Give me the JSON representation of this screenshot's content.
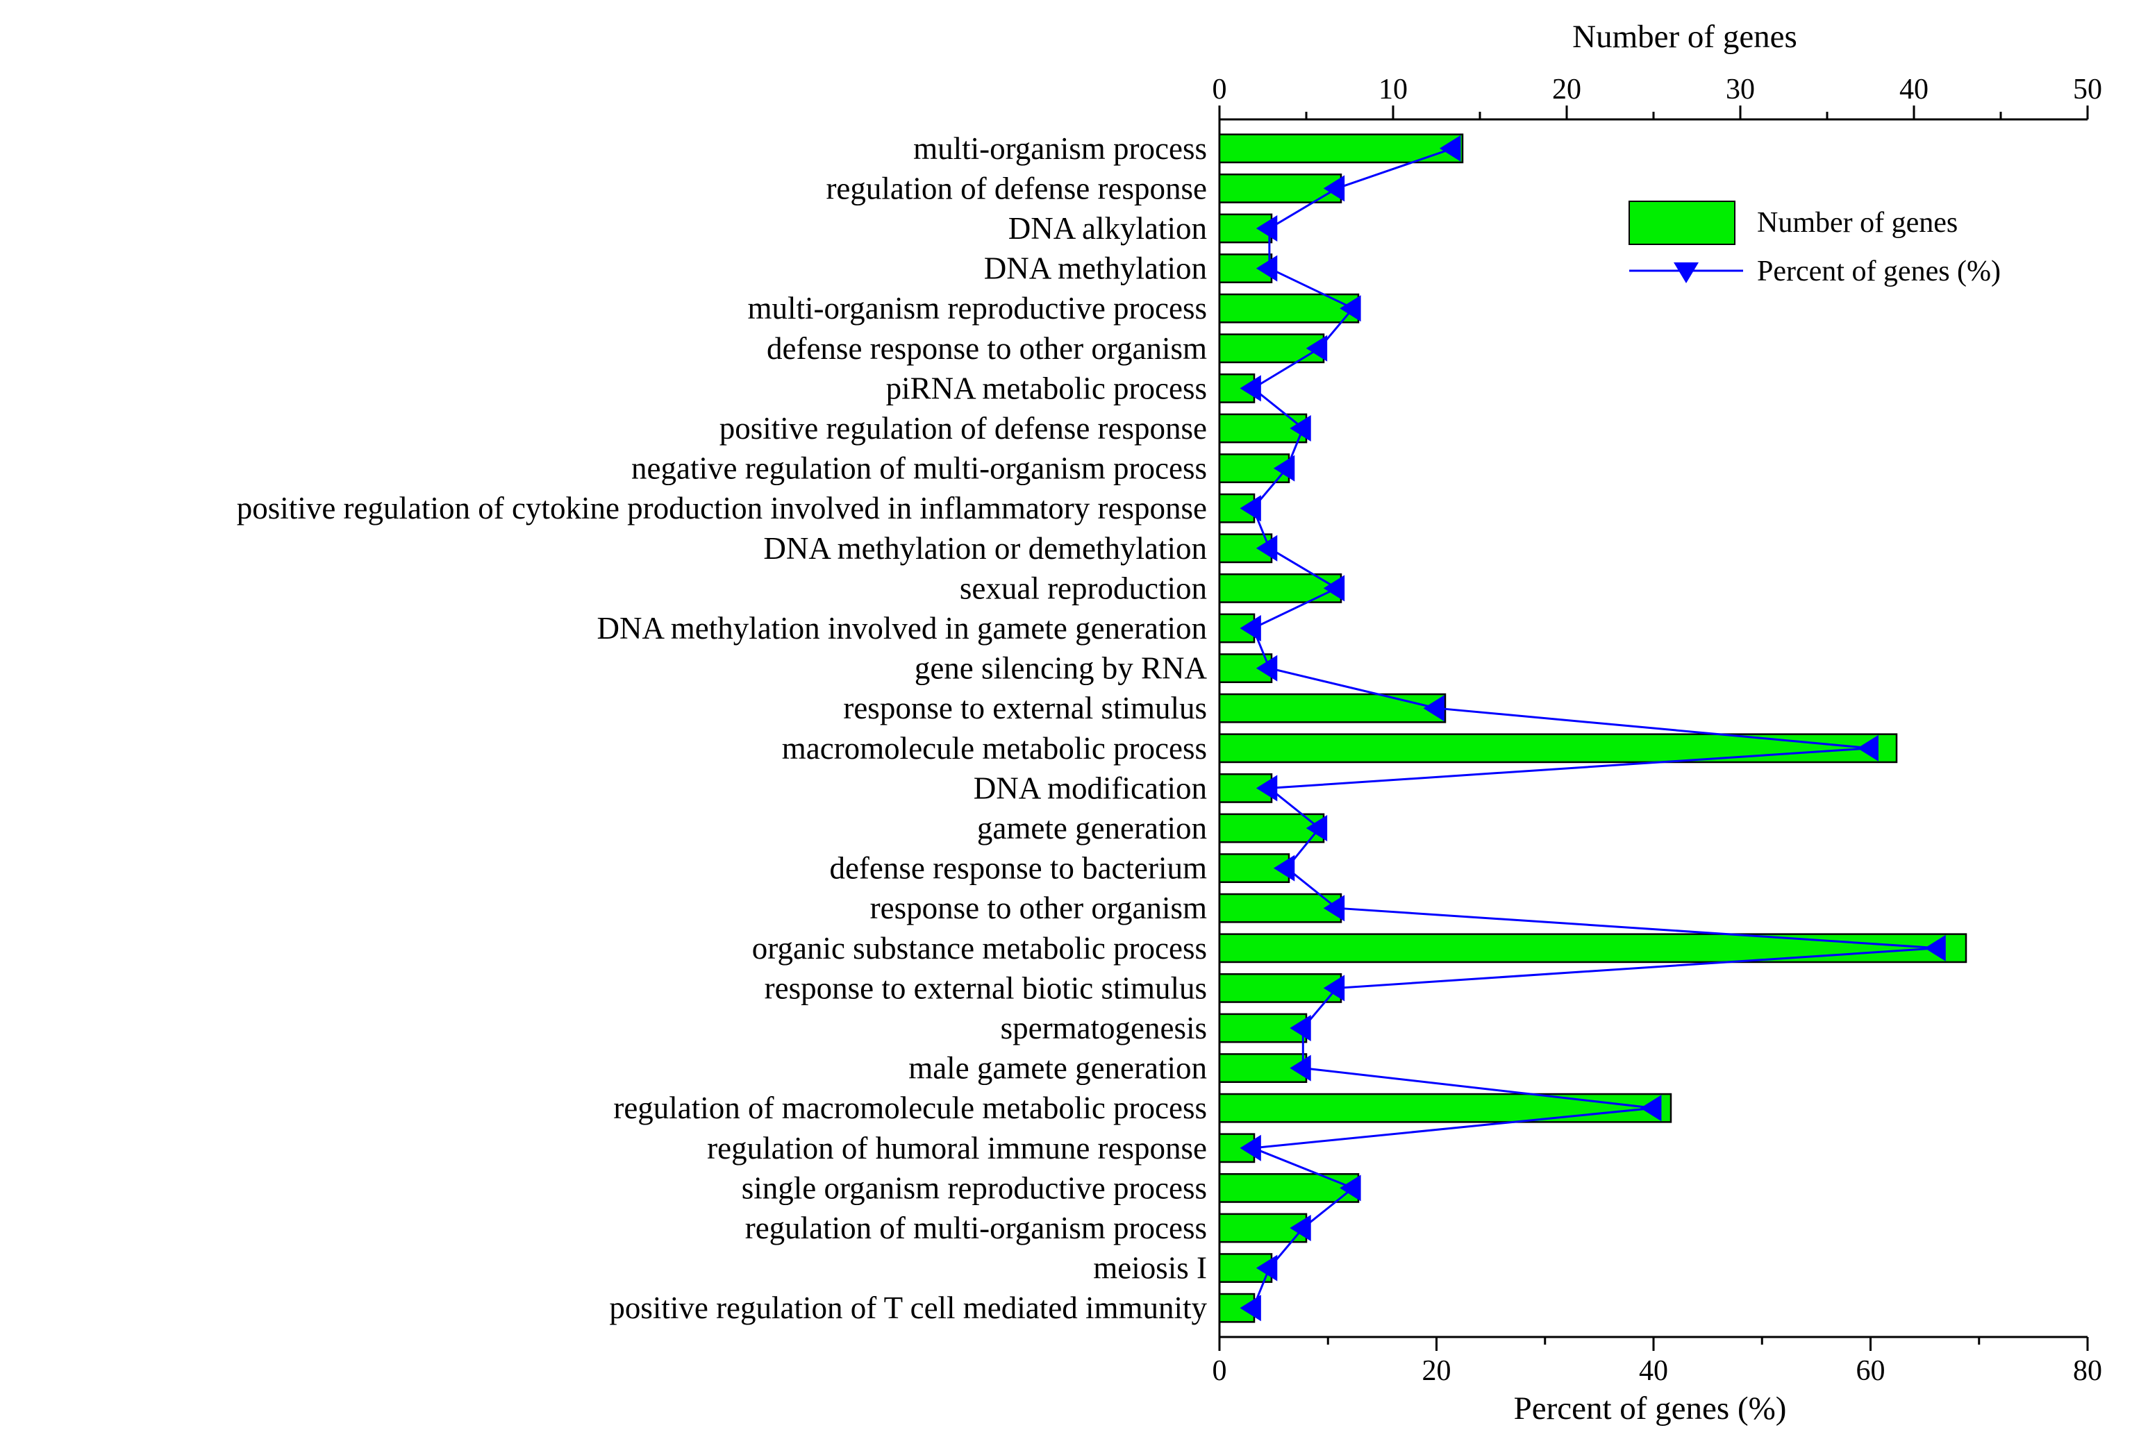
{
  "chart_data": {
    "type": "bar",
    "orientation": "horizontal",
    "categories": [
      "multi-organism process",
      "regulation of defense response",
      "DNA alkylation",
      "DNA methylation",
      "multi-organism reproductive process",
      "defense response to other organism",
      "piRNA metabolic process",
      "positive regulation of defense response",
      "negative regulation of multi-organism process",
      "positive regulation of cytokine production involved in inflammatory response",
      "DNA methylation or demethylation",
      "sexual reproduction",
      "DNA methylation involved in gamete generation",
      "gene silencing by RNA",
      "response to external stimulus",
      "macromolecule metabolic process",
      "DNA modification",
      "gamete generation",
      "defense response to bacterium",
      "response to other organism",
      "organic substance metabolic process",
      "response to external biotic stimulus",
      "spermatogenesis",
      "male gamete generation",
      "regulation of macromolecule metabolic process",
      "regulation of humoral immune response",
      "single organism reproductive process",
      "regulation of multi-organism process",
      "meiosis I",
      "positive regulation of T cell mediated immunity"
    ],
    "series": [
      {
        "name": "Number of genes",
        "type": "bar",
        "axis": "top",
        "color": "#00ee00",
        "values": [
          14,
          7,
          3,
          3,
          8,
          6,
          2,
          5,
          4,
          2,
          3,
          7,
          2,
          3,
          13,
          39,
          3,
          6,
          4,
          7,
          43,
          7,
          5,
          5,
          26,
          2,
          8,
          5,
          3,
          2
        ]
      },
      {
        "name": "Percent of  genes (%)",
        "type": "line",
        "axis": "bottom",
        "color": "#0000ff",
        "marker": "triangle",
        "values": [
          21.5,
          10.8,
          4.6,
          4.6,
          12.3,
          9.2,
          3.1,
          7.7,
          6.2,
          3.1,
          4.6,
          10.8,
          3.1,
          4.6,
          20.0,
          60.0,
          4.6,
          9.2,
          6.2,
          10.8,
          66.2,
          10.8,
          7.7,
          7.7,
          40.0,
          3.1,
          12.3,
          7.7,
          4.6,
          3.1
        ]
      }
    ],
    "top_axis": {
      "title": "Number of genes",
      "range": [
        0,
        50
      ],
      "ticks": [
        "0",
        "10",
        "20",
        "30",
        "40",
        "50"
      ]
    },
    "bottom_axis": {
      "title": "Percent of  genes (%)",
      "range": [
        0,
        80
      ],
      "ticks": [
        "0",
        "20",
        "40",
        "60",
        "80"
      ]
    },
    "legend_position": "top-right",
    "grid": false
  }
}
